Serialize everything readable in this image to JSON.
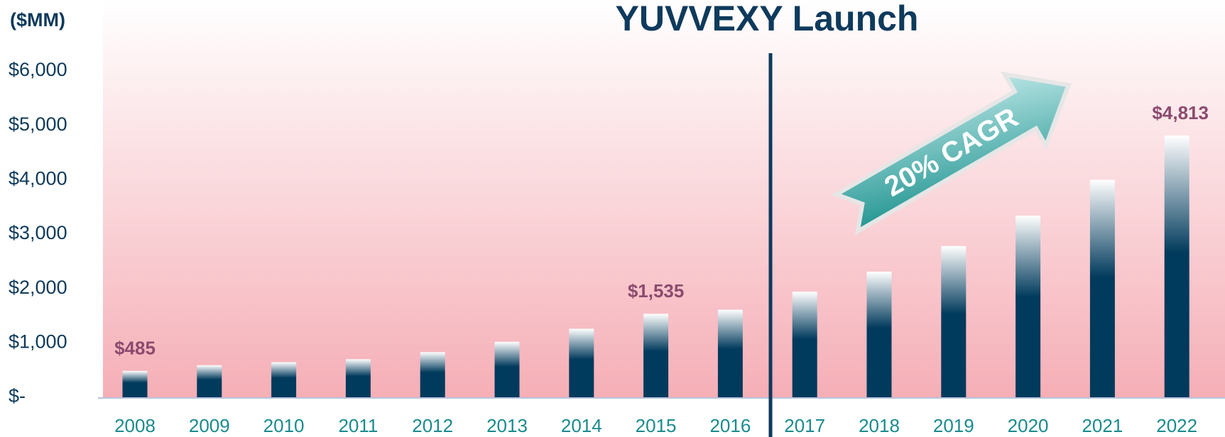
{
  "chart_data": {
    "type": "bar",
    "title": "YUVVEXY Launch",
    "y_axis_label": "($MM)",
    "annotations": [
      "20% CAGR"
    ],
    "categories": [
      "2008",
      "2009",
      "2010",
      "2011",
      "2012",
      "2013",
      "2014",
      "2015",
      "2016",
      "2017",
      "2018",
      "2019",
      "2020",
      "2021",
      "2022"
    ],
    "values": [
      485,
      590,
      645,
      700,
      830,
      1020,
      1260,
      1535,
      1610,
      1940,
      2310,
      2780,
      3340,
      4000,
      4813
    ],
    "value_labels": [
      "$485",
      null,
      null,
      null,
      null,
      null,
      null,
      "$1,535",
      null,
      null,
      null,
      null,
      null,
      null,
      "$4,813"
    ],
    "color": "#003a5c",
    "ylim": [
      0,
      6000
    ],
    "yticks": [
      {
        "value": 0,
        "label": "$-"
      },
      {
        "value": 1000,
        "label": "$1,000"
      },
      {
        "value": 2000,
        "label": "$2,000"
      },
      {
        "value": 3000,
        "label": "$3,000"
      },
      {
        "value": 4000,
        "label": "$4,000"
      },
      {
        "value": 5000,
        "label": "$5,000"
      },
      {
        "value": 6000,
        "label": "$6,000"
      }
    ]
  }
}
